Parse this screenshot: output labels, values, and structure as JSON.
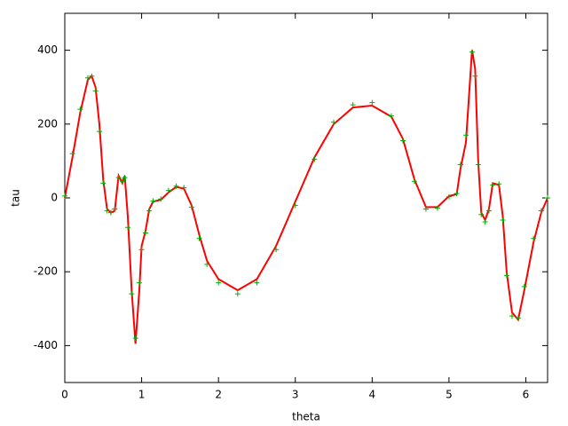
{
  "chart_data": {
    "type": "line",
    "xlabel": "theta",
    "ylabel": "tau",
    "x": [
      0,
      0.1,
      0.2,
      0.3,
      0.35,
      0.4,
      0.45,
      0.5,
      0.55,
      0.6,
      0.65,
      0.7,
      0.75,
      0.78,
      0.82,
      0.87,
      0.92,
      0.97,
      1.0,
      1.05,
      1.1,
      1.15,
      1.25,
      1.35,
      1.45,
      1.55,
      1.65,
      1.75,
      1.85,
      2.0,
      2.25,
      2.5,
      2.75,
      3.0,
      3.25,
      3.5,
      3.75,
      4.0,
      4.25,
      4.4,
      4.55,
      4.7,
      4.85,
      5.0,
      5.1,
      5.15,
      5.22,
      5.3,
      5.34,
      5.38,
      5.42,
      5.47,
      5.52,
      5.57,
      5.65,
      5.7,
      5.75,
      5.82,
      5.9,
      5.98,
      6.1,
      6.2,
      6.283
    ],
    "series": [
      {
        "color": "#ff0000",
        "style": "line",
        "values": [
          0,
          110,
          230,
          320,
          330,
          300,
          200,
          50,
          -30,
          -40,
          -35,
          60,
          40,
          60,
          -50,
          -250,
          -395,
          -250,
          -130,
          -90,
          -30,
          -10,
          -5,
          15,
          30,
          25,
          -20,
          -100,
          -170,
          -220,
          -250,
          -220,
          -130,
          -10,
          110,
          200,
          245,
          250,
          220,
          160,
          50,
          -25,
          -25,
          5,
          10,
          80,
          150,
          400,
          350,
          100,
          -40,
          -60,
          -30,
          40,
          35,
          -50,
          -200,
          -310,
          -330,
          -250,
          -120,
          -40,
          0
        ]
      },
      {
        "color": "#00b000",
        "style": "points",
        "values": [
          5,
          120,
          240,
          325,
          330,
          290,
          180,
          40,
          -35,
          -40,
          -30,
          55,
          45,
          55,
          -80,
          -260,
          -380,
          -230,
          -140,
          -95,
          -35,
          -8,
          -3,
          20,
          32,
          28,
          -25,
          -110,
          -180,
          -230,
          -260,
          -230,
          -140,
          -20,
          105,
          205,
          252,
          258,
          222,
          155,
          45,
          -30,
          -28,
          3,
          12,
          90,
          170,
          395,
          330,
          90,
          -45,
          -65,
          -35,
          35,
          38,
          -60,
          -210,
          -320,
          -325,
          -240,
          -110,
          -35,
          0
        ]
      }
    ],
    "xlim": [
      0,
      6.283
    ],
    "ylim": [
      -500,
      500
    ],
    "xticks": [
      0,
      1,
      2,
      3,
      4,
      5,
      6
    ],
    "yticks": [
      -400,
      -200,
      0,
      200,
      400
    ]
  }
}
